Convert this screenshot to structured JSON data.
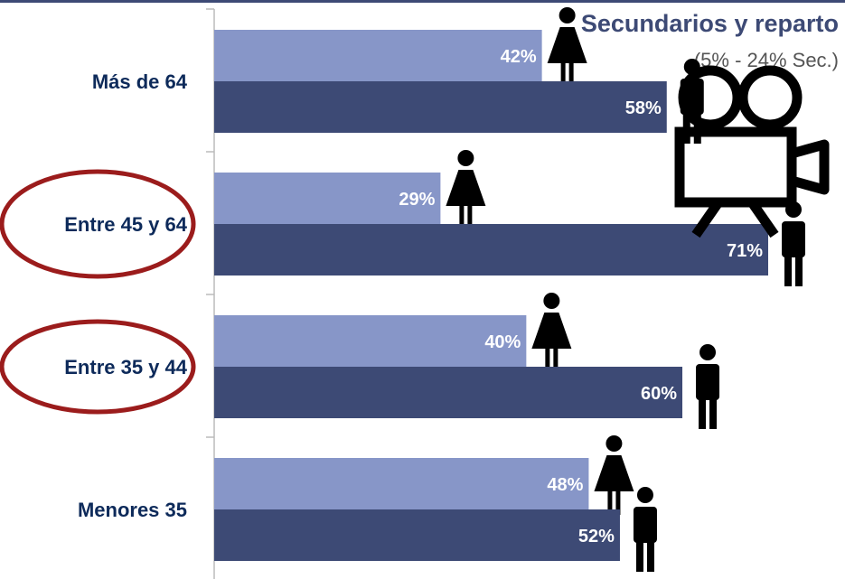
{
  "chart_data": {
    "type": "bar",
    "orientation": "horizontal",
    "title": "Secundarios y reparto",
    "subtitle": "(5% - 24% Sec.)",
    "categories": [
      "Más de 64",
      "Entre 45 y 64",
      "Entre 35 y 44",
      "Menores 35"
    ],
    "series": [
      {
        "color": "#8796c8",
        "values": [
          42,
          29,
          40,
          48
        ],
        "value_labels": [
          "42%",
          "29%",
          "40%",
          "48%"
        ]
      },
      {
        "color": "#3d4a75",
        "values": [
          58,
          71,
          60,
          52
        ],
        "value_labels": [
          "58%",
          "71%",
          "60%",
          "52%"
        ]
      }
    ]
  }
}
